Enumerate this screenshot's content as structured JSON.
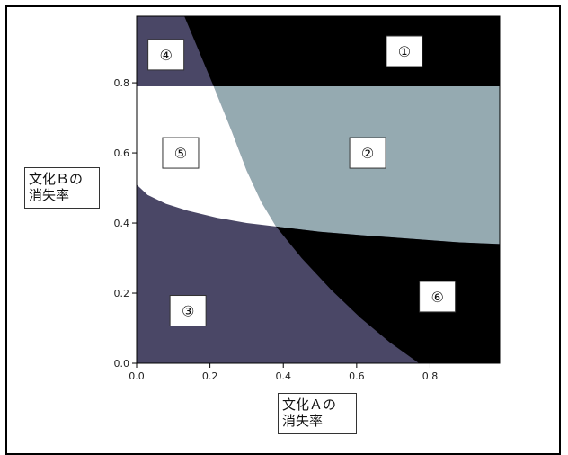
{
  "chart_data": {
    "type": "heatmap",
    "title": "",
    "xlabel": [
      "文化Ａの",
      "消失率"
    ],
    "ylabel": [
      "文化Ｂの",
      "消失率"
    ],
    "xlim": [
      0.0,
      0.99
    ],
    "ylim": [
      0.0,
      0.99
    ],
    "x_ticks": [
      "0.0",
      "0.2",
      "0.4",
      "0.6",
      "0.8"
    ],
    "y_ticks": [
      "0.0",
      "0.2",
      "0.4",
      "0.6",
      "0.8"
    ],
    "regions": [
      {
        "label": "①",
        "color": "#000000",
        "label_at": [
          0.73,
          0.89
        ]
      },
      {
        "label": "②",
        "color": "#95aab1",
        "label_at": [
          0.63,
          0.6
        ]
      },
      {
        "label": "③",
        "color": "#4a4766",
        "label_at": [
          0.14,
          0.15
        ]
      },
      {
        "label": "④",
        "color": "#4a4766",
        "label_at": [
          0.08,
          0.88
        ]
      },
      {
        "label": "⑤",
        "color": "#ffffff",
        "label_at": [
          0.12,
          0.6
        ]
      },
      {
        "label": "⑥",
        "color": "#000000",
        "label_at": [
          0.82,
          0.19
        ]
      }
    ],
    "boundaries": {
      "horizontal_y": 0.79,
      "curve_a": [
        [
          0.13,
          0.99
        ],
        [
          0.17,
          0.89
        ],
        [
          0.21,
          0.79
        ],
        [
          0.26,
          0.66
        ],
        [
          0.3,
          0.55
        ],
        [
          0.34,
          0.46
        ],
        [
          0.38,
          0.39
        ],
        [
          0.45,
          0.3
        ],
        [
          0.53,
          0.21
        ],
        [
          0.61,
          0.13
        ],
        [
          0.69,
          0.06
        ],
        [
          0.77,
          0.0
        ]
      ],
      "curve_b": [
        [
          0.0,
          0.51
        ],
        [
          0.03,
          0.48
        ],
        [
          0.08,
          0.455
        ],
        [
          0.14,
          0.435
        ],
        [
          0.22,
          0.415
        ],
        [
          0.3,
          0.4
        ],
        [
          0.38,
          0.39
        ],
        [
          0.5,
          0.375
        ],
        [
          0.62,
          0.365
        ],
        [
          0.75,
          0.355
        ],
        [
          0.88,
          0.345
        ],
        [
          0.99,
          0.34
        ]
      ]
    },
    "legend": "none",
    "grid": false
  }
}
